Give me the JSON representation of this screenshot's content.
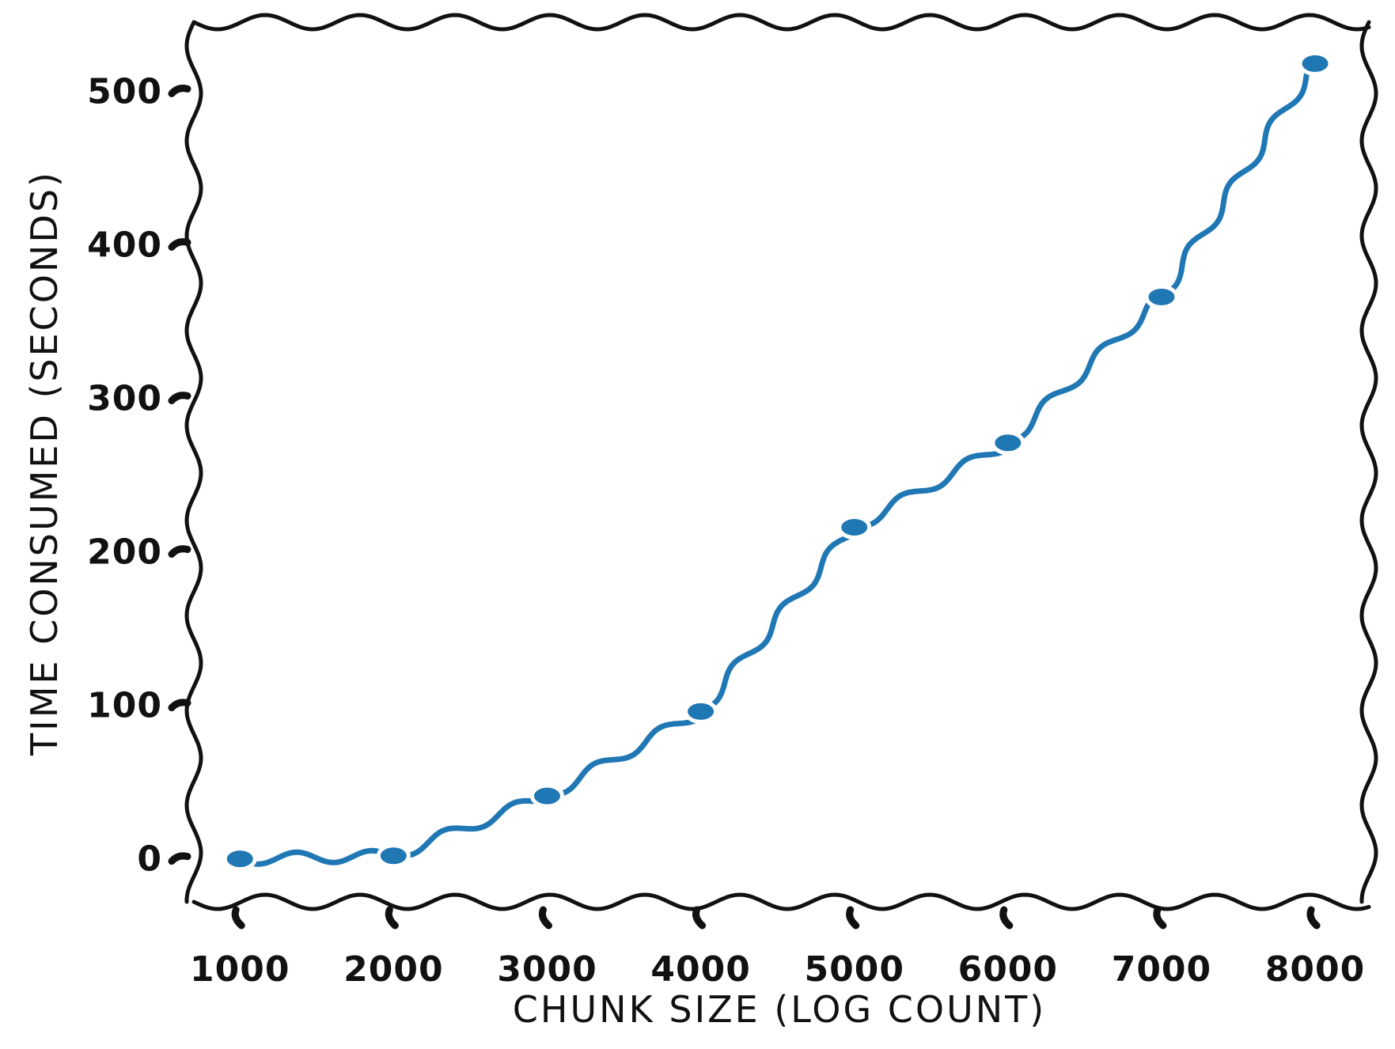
{
  "chart_data": {
    "type": "line",
    "style": "xkcd",
    "xlabel": "CHUNK SIZE (LOG COUNT)",
    "ylabel": "TIME CONSUMED (SECONDS)",
    "x_ticks": [
      "1000",
      "2000",
      "3000",
      "4000",
      "5000",
      "6000",
      "7000",
      "8000"
    ],
    "y_ticks": [
      "0",
      "100",
      "200",
      "300",
      "400",
      "500"
    ],
    "xlim": [
      700,
      8350
    ],
    "ylim": [
      -28,
      545
    ],
    "grid": false,
    "series": [
      {
        "color": "#1f77b4",
        "marker": "o",
        "x": [
          1000,
          2000,
          3000,
          4000,
          5000,
          6000,
          7000,
          8000
        ],
        "y": [
          0,
          2,
          41,
          96,
          216,
          271,
          366,
          518
        ]
      }
    ]
  }
}
